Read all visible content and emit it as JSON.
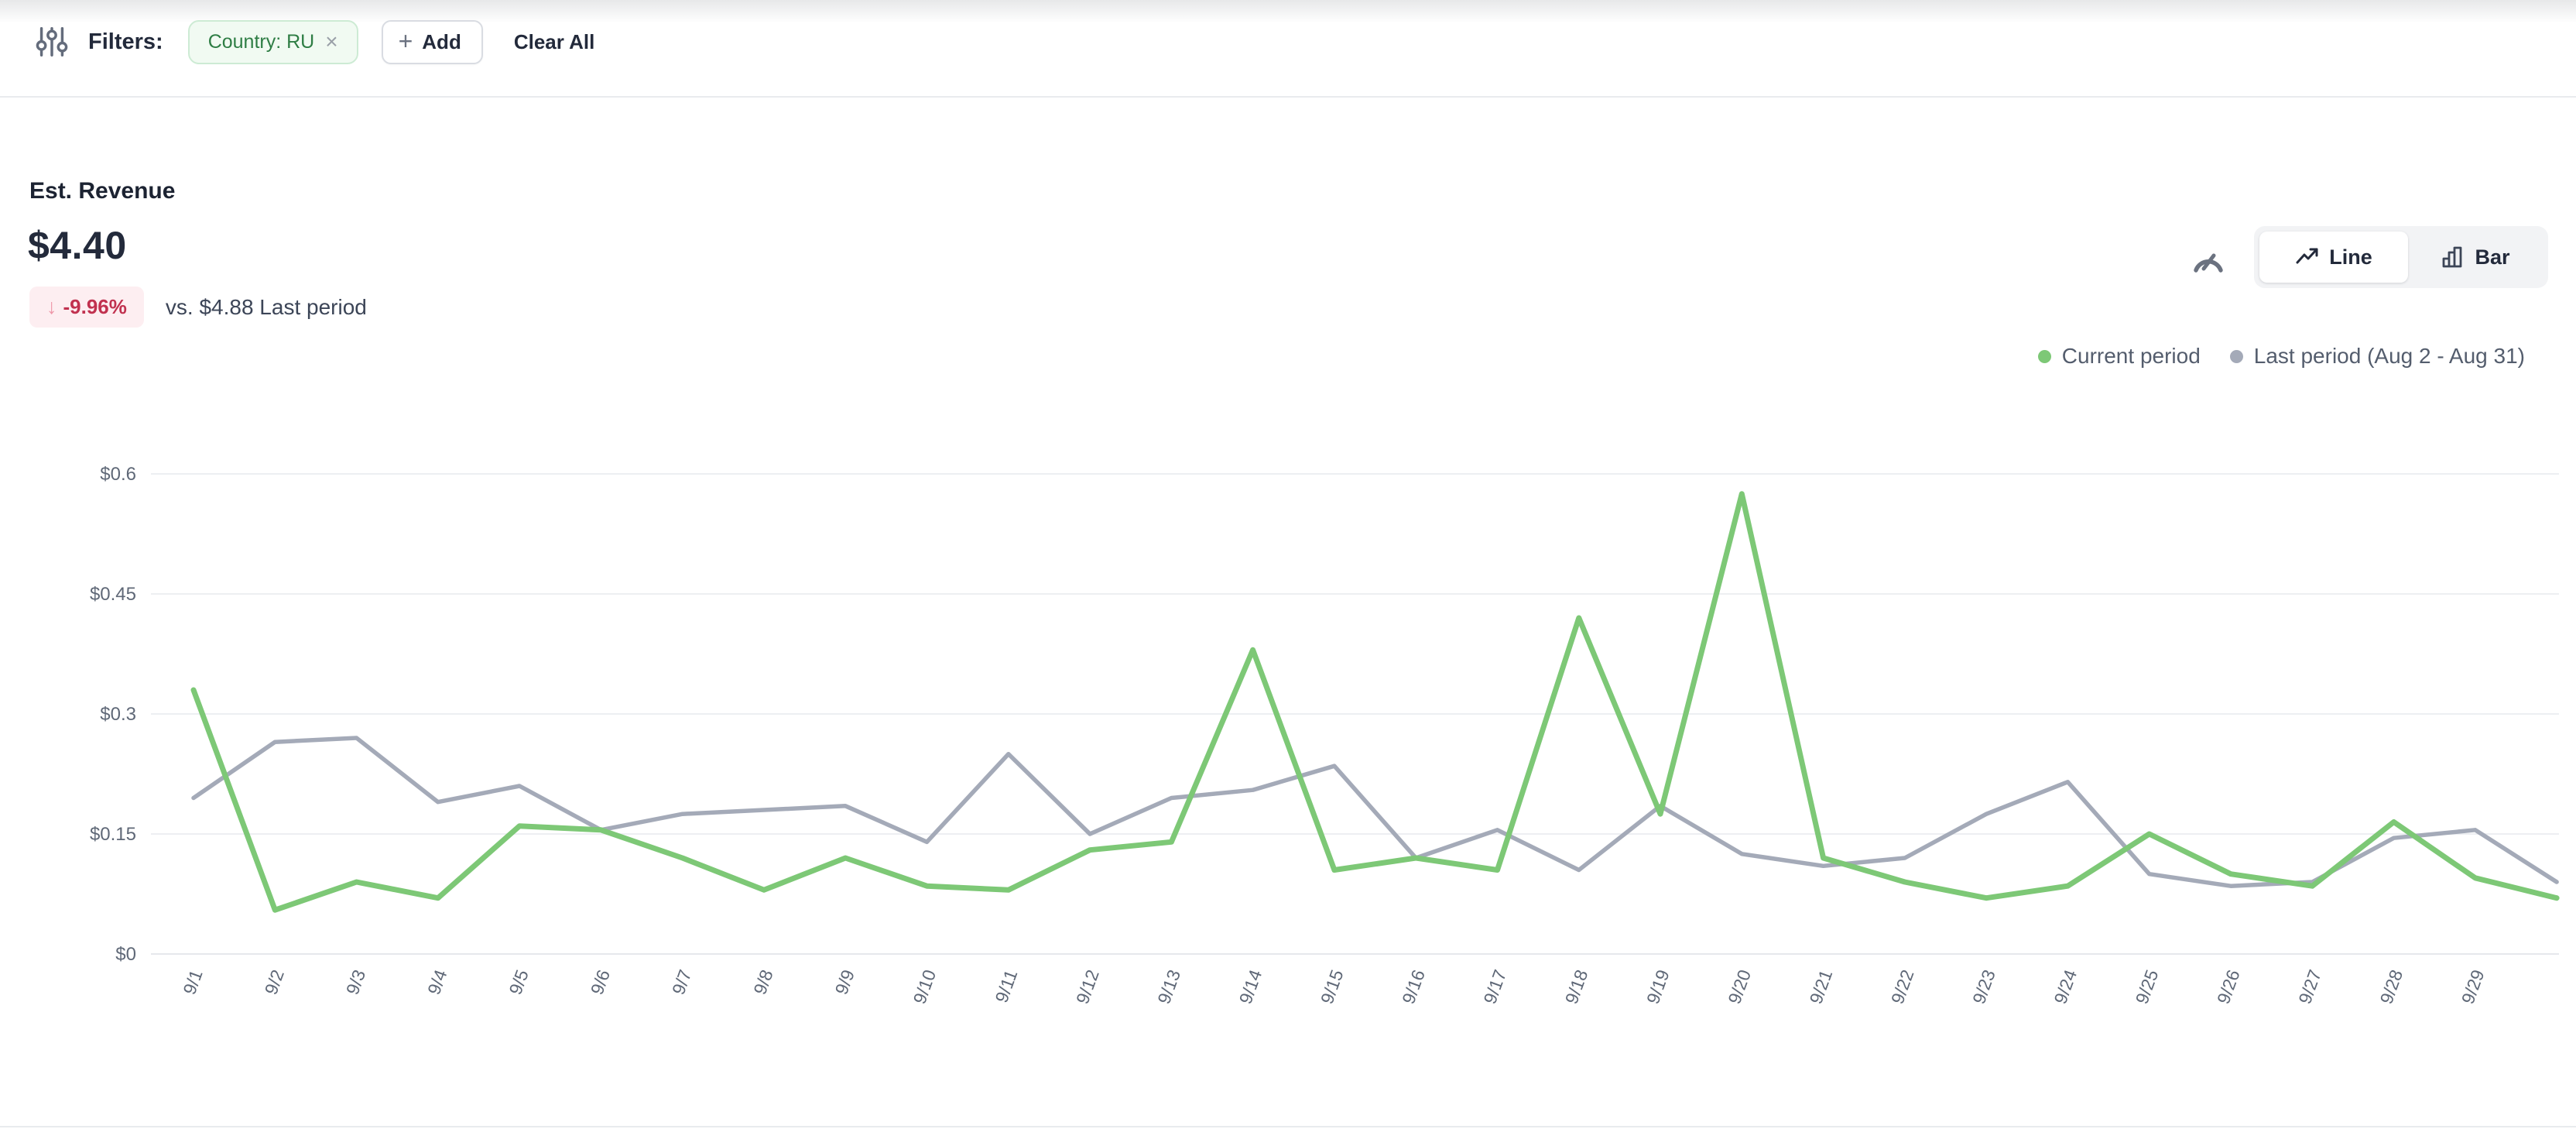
{
  "filters_bar": {
    "label": "Filters:",
    "chip": {
      "text": "Country: RU",
      "close_icon": "×"
    },
    "add_button": {
      "plus_icon": "+",
      "label": "Add"
    },
    "clear_all_label": "Clear All"
  },
  "metric": {
    "title": "Est. Revenue",
    "value": "$4.40",
    "delta_arrow": "↓",
    "delta_pct": "-9.96%",
    "comparison": "vs. $4.88 Last period"
  },
  "view_toggle": {
    "line_label": "Line",
    "bar_label": "Bar"
  },
  "legend": [
    {
      "label": "Current period",
      "color": "#7dc876"
    },
    {
      "label": "Last period (Aug 2 - Aug 31)",
      "color": "#a4aab8"
    }
  ],
  "chart_data": {
    "type": "line",
    "x": [
      "9/1",
      "9/2",
      "9/3",
      "9/4",
      "9/5",
      "9/6",
      "9/7",
      "9/8",
      "9/9",
      "9/10",
      "9/11",
      "9/12",
      "9/13",
      "9/14",
      "9/15",
      "9/16",
      "9/17",
      "9/18",
      "9/19",
      "9/20",
      "9/21",
      "9/22",
      "9/23",
      "9/24",
      "9/25",
      "9/26",
      "9/27",
      "9/28",
      "9/29",
      ""
    ],
    "series": [
      {
        "name": "Current period",
        "color": "#7dc876",
        "stroke_width": 7,
        "values": [
          0.33,
          0.055,
          0.09,
          0.07,
          0.16,
          0.155,
          0.12,
          0.08,
          0.12,
          0.085,
          0.08,
          0.13,
          0.14,
          0.38,
          0.105,
          0.12,
          0.105,
          0.42,
          0.175,
          0.575,
          0.12,
          0.09,
          0.07,
          0.085,
          0.15,
          0.1,
          0.085,
          0.165,
          0.095,
          0.07
        ]
      },
      {
        "name": "Last period (Aug 2 - Aug 31)",
        "color": "#a4aab8",
        "stroke_width": 5.5,
        "values": [
          0.195,
          0.265,
          0.27,
          0.19,
          0.21,
          0.155,
          0.175,
          0.18,
          0.185,
          0.14,
          0.25,
          0.15,
          0.195,
          0.205,
          0.235,
          0.12,
          0.155,
          0.105,
          0.185,
          0.125,
          0.11,
          0.12,
          0.175,
          0.215,
          0.1,
          0.085,
          0.09,
          0.145,
          0.155,
          0.09
        ]
      }
    ],
    "y_ticks": [
      {
        "label": "$0",
        "value": 0
      },
      {
        "label": "$0.15",
        "value": 0.15
      },
      {
        "label": "$0.3",
        "value": 0.3
      },
      {
        "label": "$0.45",
        "value": 0.45
      },
      {
        "label": "$0.6",
        "value": 0.6
      }
    ],
    "ylim": [
      0,
      0.6
    ],
    "grid": true,
    "legend_position": "top-right",
    "title": "Est. Revenue"
  },
  "colors": {
    "current_line": "#7dc876",
    "last_line": "#a4aab8",
    "delta_bg": "#fdeef1",
    "delta_text": "#c1314f",
    "chip_bg": "#f1faf2",
    "chip_text": "#2e7d44"
  }
}
